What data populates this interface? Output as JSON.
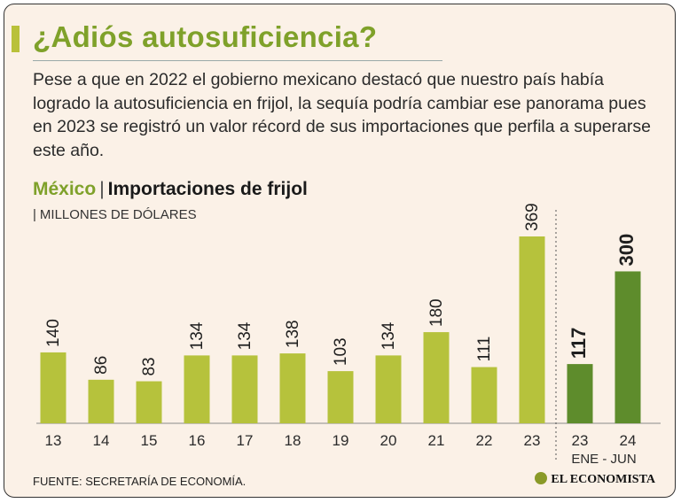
{
  "headline": "¿Adiós autosuficiencia?",
  "intro": "Pese a que en 2022 el gobierno mexicano destacó que nuestro país había logrado la autosuficiencia en frijol, la sequía podría cambiar ese panorama pues en 2023 se registró un valor récord de sus importaciones que perfila a superarse este año.",
  "chart_heading": {
    "country": "México",
    "separator": "|",
    "title": "Importaciones de frijol",
    "units": "MILLONES DE DÓLARES",
    "units_bar": "|"
  },
  "chart_data": {
    "type": "bar",
    "title": "Importaciones de frijol",
    "ylabel": "MILLONES DE DÓLARES",
    "categories": [
      "13",
      "14",
      "15",
      "16",
      "17",
      "18",
      "19",
      "20",
      "21",
      "22",
      "23",
      "23",
      "24"
    ],
    "values": [
      140,
      86,
      83,
      134,
      134,
      138,
      103,
      134,
      180,
      111,
      369,
      117,
      300
    ],
    "highlight": [
      false,
      false,
      false,
      false,
      false,
      false,
      false,
      false,
      false,
      false,
      false,
      true,
      true
    ],
    "period_label": "ENE - JUN",
    "ylim": [
      0,
      400
    ],
    "colors": {
      "annual": "#b6c23c",
      "partial": "#5e8c2c"
    }
  },
  "source": "FUENTE: SECRETARÍA DE ECONOMÍA.",
  "brand": "EL ECONOMISTA"
}
